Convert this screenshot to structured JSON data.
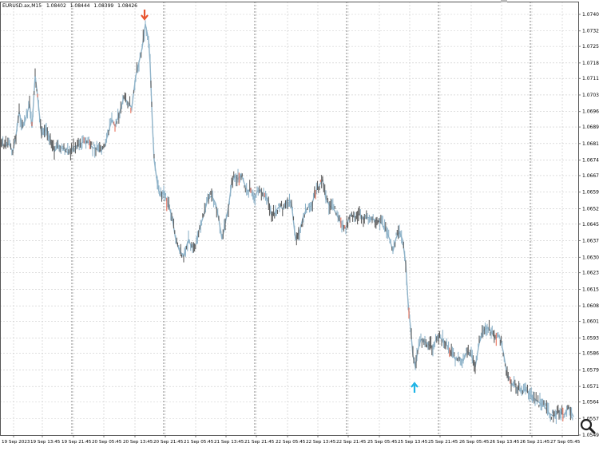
{
  "header": {
    "symbol": "EURUSD.ax,M15",
    "open": "1.08402",
    "high": "1.08444",
    "low": "1.08399",
    "close": "1.08426"
  },
  "price_axis_labels": [
    "1.07400",
    "1.07325",
    "1.07255",
    "1.07180",
    "1.07110",
    "1.07035",
    "1.06960",
    "1.06890",
    "1.06815",
    "1.06740",
    "1.06670",
    "1.06595",
    "1.06520",
    "1.06450",
    "1.06375",
    "1.06300",
    "1.06230",
    "1.06155",
    "1.06080",
    "1.06010",
    "1.05935",
    "1.05865",
    "1.05790",
    "1.05715",
    "1.05645",
    "1.05570",
    "1.05495"
  ],
  "time_axis_labels": [
    "19 Sep 2023",
    "19 Sep 13:45",
    "19 Sep 21:45",
    "20 Sep 05:45",
    "20 Sep 13:45",
    "20 Sep 21:45",
    "21 Sep 05:45",
    "21 Sep 13:45",
    "21 Sep 21:45",
    "22 Sep 05:45",
    "22 Sep 13:45",
    "22 Sep 21:45",
    "25 Sep 05:45",
    "25 Sep 13:45",
    "25 Sep 21:45",
    "26 Sep 05:45",
    "26 Sep 13:45",
    "26 Sep 21:45",
    "27 Sep 05:45"
  ],
  "colors": {
    "bull": "#8fb3c9",
    "bear": "#5f5f5f",
    "bear_accent": "#e8705a",
    "grid": "#c9c9c9",
    "separator": "#7a7a7a",
    "down_arrow": "#e8542e",
    "up_arrow": "#1eb4e6"
  },
  "markers": [
    {
      "name": "sell-arrow-icon",
      "direction": "down",
      "time": "20 Sep 17:45",
      "price": 1.0745
    },
    {
      "name": "buy-arrow-icon",
      "direction": "up",
      "time": "25 Sep 13:45",
      "price": 1.0569
    }
  ],
  "chart_data": {
    "type": "line",
    "title": "EURUSD.ax,M15",
    "x": [
      "19 Sep 2023",
      "19 Sep 13:45",
      "19 Sep 21:45",
      "20 Sep 05:45",
      "20 Sep 13:45",
      "20 Sep 17:45",
      "20 Sep 21:45",
      "21 Sep 05:45",
      "21 Sep 13:45",
      "21 Sep 21:45",
      "22 Sep 05:45",
      "22 Sep 13:45",
      "22 Sep 21:45",
      "25 Sep 05:45",
      "25 Sep 13:45",
      "25 Sep 21:45",
      "26 Sep 05:45",
      "26 Sep 13:45",
      "26 Sep 21:45",
      "27 Sep 05:45"
    ],
    "series": [
      {
        "values": [
          1.0684,
          1.0688,
          1.068,
          1.069,
          1.0703,
          1.0736,
          1.0662,
          1.064,
          1.066,
          1.0655,
          1.065,
          1.0655,
          1.0648,
          1.063,
          1.0578,
          1.0592,
          1.0603,
          1.0575,
          1.0565,
          1.0558
        ]
      }
    ],
    "ylim": [
      1.0549,
      1.0745
    ],
    "grid": true
  }
}
